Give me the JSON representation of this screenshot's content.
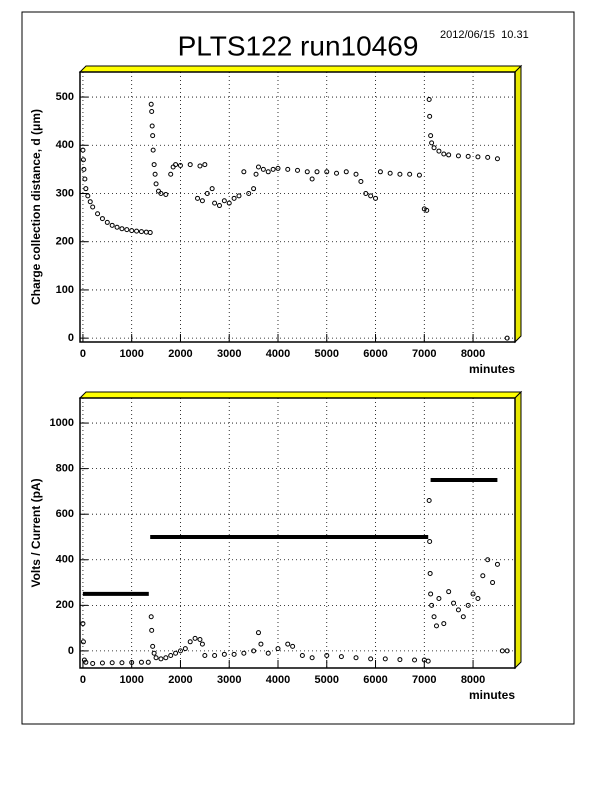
{
  "title": "PLTS122  run10469",
  "timestamp": "2012/06/15  10.31",
  "chart_data": [
    {
      "type": "scatter",
      "xlabel": "minutes",
      "ylabel": "Charge collection distance, d  (μm)",
      "xlim": [
        -60,
        8860
      ],
      "ylim": [
        -8,
        552
      ],
      "xticks": [
        0,
        1000,
        2000,
        3000,
        4000,
        5000,
        6000,
        7000,
        8000
      ],
      "yticks": [
        0,
        100,
        200,
        300,
        400,
        500
      ],
      "grid": true,
      "series": [
        {
          "color": "#000000",
          "marker": "circle",
          "x": [
            0,
            10,
            20,
            40,
            60,
            100,
            150,
            200,
            300,
            400,
            500,
            600,
            700,
            800,
            900,
            1000,
            1100,
            1200,
            1300,
            1380,
            1400,
            1410,
            1420,
            1430,
            1440,
            1460,
            1480,
            1500,
            1550,
            1600,
            1700,
            1800,
            1850,
            1900,
            2000,
            2200,
            2400,
            2500,
            2350,
            2450,
            2550,
            2650,
            2700,
            2800,
            2900,
            3000,
            3100,
            3200,
            3300,
            3400,
            3500,
            3550,
            3600,
            3700,
            3800,
            3900,
            4000,
            4200,
            4400,
            4600,
            4700,
            4800,
            5000,
            5200,
            5400,
            5600,
            5700,
            5800,
            5900,
            6000,
            6100,
            6300,
            6500,
            6700,
            6900,
            7000,
            7050,
            7100,
            7110,
            7130,
            7150,
            7200,
            7300,
            7400,
            7500,
            7700,
            7900,
            8100,
            8300,
            8500,
            8700
          ],
          "values": [
            390,
            370,
            350,
            330,
            310,
            295,
            283,
            272,
            258,
            248,
            240,
            234,
            230,
            227,
            225,
            223,
            222,
            221,
            220,
            219,
            485,
            470,
            440,
            420,
            390,
            360,
            340,
            320,
            305,
            300,
            298,
            340,
            355,
            360,
            358,
            360,
            357,
            360,
            290,
            285,
            300,
            310,
            280,
            275,
            285,
            280,
            290,
            295,
            345,
            300,
            310,
            340,
            355,
            350,
            345,
            350,
            352,
            350,
            348,
            345,
            330,
            345,
            345,
            342,
            345,
            340,
            325,
            300,
            295,
            290,
            345,
            342,
            340,
            340,
            338,
            268,
            265,
            495,
            460,
            420,
            405,
            395,
            388,
            382,
            380,
            378,
            377,
            376,
            375,
            372,
            0
          ]
        }
      ]
    },
    {
      "type": "scatter",
      "xlabel": "minutes",
      "ylabel": "Volts / Current  (pA)",
      "xlim": [
        -60,
        8860
      ],
      "ylim": [
        -75,
        1110
      ],
      "xticks": [
        0,
        1000,
        2000,
        3000,
        4000,
        5000,
        6000,
        7000,
        8000
      ],
      "yticks": [
        0,
        200,
        400,
        600,
        800,
        1000
      ],
      "grid": true,
      "series": [
        {
          "color": "#000000",
          "style": "line",
          "x": [
            0,
            1350,
            null,
            1380,
            7080,
            null,
            7130,
            8500
          ],
          "values": [
            250,
            250,
            null,
            500,
            500,
            null,
            750,
            750
          ]
        },
        {
          "color": "#000000",
          "marker": "circle",
          "x": [
            0,
            10,
            30,
            60,
            200,
            400,
            600,
            800,
            1000,
            1200,
            1340,
            1400,
            1410,
            1430,
            1460,
            1500,
            1600,
            1700,
            1800,
            1900,
            2000,
            2100,
            2200,
            2300,
            2400,
            2450,
            2500,
            2700,
            2900,
            3100,
            3300,
            3500,
            3600,
            3650,
            3800,
            4000,
            4200,
            4300,
            4500,
            4700,
            5000,
            5300,
            5600,
            5900,
            6200,
            6500,
            6800,
            7000,
            7080,
            7100,
            7110,
            7120,
            7130,
            7150,
            7200,
            7250,
            7300,
            7400,
            7500,
            7600,
            7700,
            7800,
            7900,
            8000,
            8100,
            8200,
            8300,
            8400,
            8500,
            8600,
            8700
          ],
          "values": [
            120,
            40,
            -40,
            -50,
            -55,
            -53,
            -52,
            -52,
            -51,
            -50,
            -50,
            150,
            90,
            20,
            -10,
            -30,
            -35,
            -30,
            -20,
            -10,
            0,
            10,
            40,
            55,
            50,
            30,
            -20,
            -20,
            -15,
            -15,
            -10,
            0,
            80,
            30,
            -10,
            10,
            30,
            20,
            -20,
            -30,
            -20,
            -25,
            -30,
            -35,
            -35,
            -38,
            -40,
            -40,
            -45,
            660,
            480,
            340,
            250,
            200,
            150,
            110,
            230,
            120,
            260,
            210,
            180,
            150,
            200,
            250,
            230,
            330,
            400,
            300,
            380,
            0,
            0
          ]
        }
      ]
    }
  ]
}
